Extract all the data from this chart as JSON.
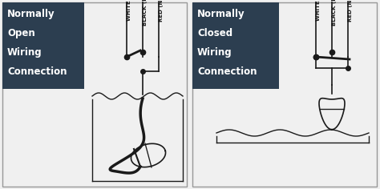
{
  "bg_color": "#f0f0f0",
  "panel_bg": "#2c3e50",
  "line_color": "#1a1a1a",
  "text_color": "#ffffff",
  "left_title": [
    "Normally",
    "Open",
    "Wiring",
    "Connection"
  ],
  "right_title": [
    "Normally",
    "Closed",
    "Wiring",
    "Connection"
  ],
  "wire_labels": [
    "WHITE (C)",
    "BLACK (N.O.)",
    "RED (N.C.)"
  ],
  "title_fontsize": 8.5,
  "label_fontsize": 5.0
}
